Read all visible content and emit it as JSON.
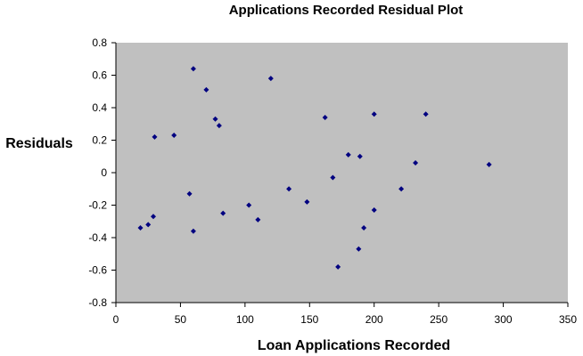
{
  "chart_data": {
    "type": "scatter",
    "title": "Applications  Recorded  Residual Plot",
    "xlabel": "Loan Applications  Recorded",
    "ylabel": "Residuals",
    "xlim": [
      0,
      350
    ],
    "ylim": [
      -0.8,
      0.8
    ],
    "xticks": [
      "0",
      "50",
      "100",
      "150",
      "200",
      "250",
      "300",
      "350"
    ],
    "yticks": [
      "0.8",
      "0.6",
      "0.4",
      "0.2",
      "0",
      "-0.2",
      "-0.4",
      "-0.6",
      "-0.8"
    ],
    "grid": false,
    "legend": "none",
    "colors": {
      "plot_area": "#c0c0c0",
      "marker": "#000080",
      "axis": "#000000"
    },
    "series": [
      {
        "points": [
          {
            "x": 19,
            "y": -0.34
          },
          {
            "x": 25,
            "y": -0.32
          },
          {
            "x": 29,
            "y": -0.27
          },
          {
            "x": 30,
            "y": 0.22
          },
          {
            "x": 45,
            "y": 0.23
          },
          {
            "x": 57,
            "y": -0.13
          },
          {
            "x": 60,
            "y": 0.64
          },
          {
            "x": 60,
            "y": -0.36
          },
          {
            "x": 70,
            "y": 0.51
          },
          {
            "x": 77,
            "y": 0.33
          },
          {
            "x": 80,
            "y": 0.29
          },
          {
            "x": 83,
            "y": -0.25
          },
          {
            "x": 103,
            "y": -0.2
          },
          {
            "x": 110,
            "y": -0.29
          },
          {
            "x": 120,
            "y": 0.58
          },
          {
            "x": 134,
            "y": -0.1
          },
          {
            "x": 148,
            "y": -0.18
          },
          {
            "x": 162,
            "y": 0.34
          },
          {
            "x": 168,
            "y": -0.03
          },
          {
            "x": 172,
            "y": -0.58
          },
          {
            "x": 180,
            "y": 0.11
          },
          {
            "x": 188,
            "y": -0.47
          },
          {
            "x": 189,
            "y": 0.1
          },
          {
            "x": 192,
            "y": -0.34
          },
          {
            "x": 200,
            "y": 0.36
          },
          {
            "x": 200,
            "y": -0.23
          },
          {
            "x": 221,
            "y": -0.1
          },
          {
            "x": 232,
            "y": 0.06
          },
          {
            "x": 240,
            "y": 0.36
          },
          {
            "x": 289,
            "y": 0.05
          }
        ]
      }
    ]
  }
}
